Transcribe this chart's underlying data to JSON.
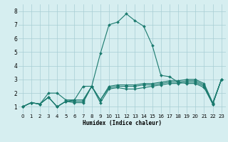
{
  "title": "",
  "xlabel": "Humidex (Indice chaleur)",
  "ylabel": "",
  "background_color": "#d6eef0",
  "line_color": "#1a7a6e",
  "xlim": [
    -0.5,
    23.5
  ],
  "ylim": [
    0.5,
    8.5
  ],
  "xticks": [
    0,
    1,
    2,
    3,
    4,
    5,
    6,
    7,
    8,
    9,
    10,
    11,
    12,
    13,
    14,
    15,
    16,
    17,
    18,
    19,
    20,
    21,
    22,
    23
  ],
  "yticks": [
    1,
    2,
    3,
    4,
    5,
    6,
    7,
    8
  ],
  "series": [
    [
      1.0,
      1.3,
      1.2,
      1.7,
      1.0,
      1.4,
      1.3,
      1.3,
      2.5,
      1.3,
      2.3,
      2.4,
      2.3,
      2.3,
      2.4,
      2.5,
      2.6,
      2.7,
      2.7,
      2.8,
      2.8,
      2.5,
      1.2,
      3.0
    ],
    [
      1.0,
      1.3,
      1.2,
      1.7,
      1.0,
      1.4,
      1.5,
      1.5,
      2.5,
      1.5,
      2.4,
      2.5,
      2.5,
      2.5,
      2.6,
      2.6,
      2.7,
      2.8,
      2.8,
      2.9,
      2.9,
      2.6,
      1.2,
      3.0
    ],
    [
      1.0,
      1.3,
      1.2,
      2.0,
      2.0,
      1.5,
      1.5,
      2.5,
      2.5,
      1.5,
      2.5,
      2.6,
      2.6,
      2.6,
      2.7,
      2.7,
      2.8,
      2.9,
      2.9,
      3.0,
      3.0,
      2.7,
      1.3,
      3.0
    ],
    [
      1.0,
      1.3,
      1.2,
      1.7,
      1.0,
      1.4,
      1.4,
      1.4,
      2.5,
      4.9,
      7.0,
      7.2,
      7.8,
      7.3,
      6.9,
      5.5,
      3.3,
      3.2,
      2.8,
      2.7,
      2.7,
      2.4,
      1.2,
      3.0
    ]
  ],
  "figsize": [
    3.2,
    2.0
  ],
  "dpi": 100,
  "xlabel_fontsize": 5.5,
  "tick_fontsize": 5.0,
  "ytick_fontsize": 5.5,
  "grid_color": "#a8cdd4",
  "marker_size": 2.0,
  "line_width": 0.8
}
